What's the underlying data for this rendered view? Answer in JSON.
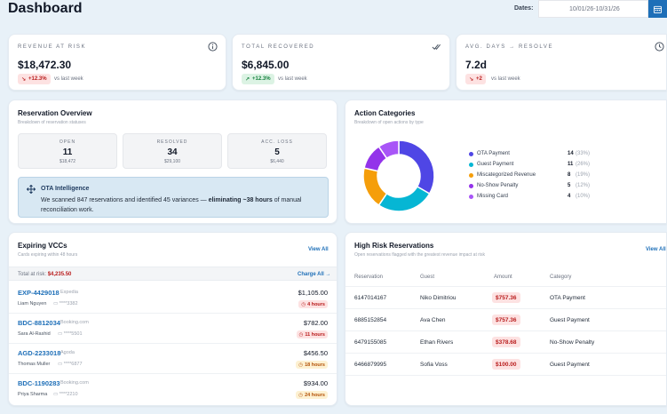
{
  "header": {
    "title": "Dashboard",
    "dates_label": "Dates:",
    "dates_value": "10/01/26-10/31/26"
  },
  "kpis": [
    {
      "label": "REVENUE AT RISK",
      "value": "$18,472.30",
      "delta": "+12.3%",
      "delta_tone": "red",
      "compare": "vs last week",
      "icon": "info-icon"
    },
    {
      "label": "TOTAL RECOVERED",
      "value": "$6,845.00",
      "delta": "+12.3%",
      "delta_tone": "green",
      "compare": "vs last week",
      "icon": "double-check-icon"
    },
    {
      "label": "AVG. DAYS → RESOLVE",
      "value": "7.2d",
      "delta": "+2",
      "delta_tone": "red",
      "compare": "vs last week",
      "icon": "clock-icon"
    }
  ],
  "overview": {
    "title": "Reservation Overview",
    "subtitle": "Breakdown of reservation statuses",
    "stats": [
      {
        "label": "OPEN",
        "value": "11",
        "amount": "$18,472"
      },
      {
        "label": "RESOLVED",
        "value": "34",
        "amount": "$29,100"
      },
      {
        "label": "ACC. LOSS",
        "value": "5",
        "amount": "$6,440"
      }
    ],
    "intel_title": "OTA Intelligence",
    "intel_text_prefix": "We scanned 847 reservations and identified 45 variances — ",
    "intel_text_bold": "eliminating ~38 hours",
    "intel_text_suffix": " of manual reconciliation work."
  },
  "categories": {
    "title": "Action Categories",
    "subtitle": "Breakdown of open actions by type",
    "items": [
      {
        "name": "OTA Payment",
        "count": "14",
        "pct": "(33%)",
        "value": 14,
        "color": "#4f46e5"
      },
      {
        "name": "Guest Payment",
        "count": "11",
        "pct": "(26%)",
        "value": 11,
        "color": "#06b6d4"
      },
      {
        "name": "Miscategorized Revenue",
        "count": "8",
        "pct": "(19%)",
        "value": 8,
        "color": "#f59e0b"
      },
      {
        "name": "No-Show Penalty",
        "count": "5",
        "pct": "(12%)",
        "value": 5,
        "color": "#9333ea"
      },
      {
        "name": "Missing Card",
        "count": "4",
        "pct": "(10%)",
        "value": 4,
        "color": "#a855f7"
      }
    ]
  },
  "vccs": {
    "title": "Expiring VCCs",
    "subtitle": "Cards expiring within 48 hours",
    "view_all": "View All",
    "total_label": "Total at risk:",
    "total_value": "$4,235.50",
    "charge_all": "Charge All →",
    "rows": [
      {
        "code": "EXP-4429018",
        "channel": "Expedia",
        "guest": "Liam Nguyen",
        "card": "****3382",
        "amount": "$1,105.00",
        "time": "4 hours",
        "tone": "red"
      },
      {
        "code": "BDC-8812034",
        "channel": "Booking.com",
        "guest": "Sara Al-Rashid",
        "card": "****5501",
        "amount": "$782.00",
        "time": "11 hours",
        "tone": "red"
      },
      {
        "code": "AGD-2233018",
        "channel": "Agoda",
        "guest": "Thomas Muller",
        "card": "****6877",
        "amount": "$456.50",
        "time": "18 hours",
        "tone": "amber"
      },
      {
        "code": "BDC-1190283",
        "channel": "Booking.com",
        "guest": "Priya Sharma",
        "card": "****2210",
        "amount": "$934.00",
        "time": "24 hours",
        "tone": "amber"
      }
    ]
  },
  "risk": {
    "title": "High Risk Reservations",
    "subtitle": "Open reservations flagged with the greatest revenue impact at risk",
    "view_all": "View All",
    "columns": [
      "Reservation",
      "Guest",
      "Amount",
      "Category"
    ],
    "rows": [
      {
        "reservation": "6147014167",
        "guest": "Niko Dimitriou",
        "amount": "$757.36",
        "category": "OTA Payment"
      },
      {
        "reservation": "6885152854",
        "guest": "Ava Chen",
        "amount": "$757.36",
        "category": "Guest Payment"
      },
      {
        "reservation": "6479155085",
        "guest": "Ethan Rivers",
        "amount": "$378.68",
        "category": "No-Show Penalty"
      },
      {
        "reservation": "6466879995",
        "guest": "Sofia Voss",
        "amount": "$100.00",
        "category": "Guest Payment"
      }
    ]
  }
}
